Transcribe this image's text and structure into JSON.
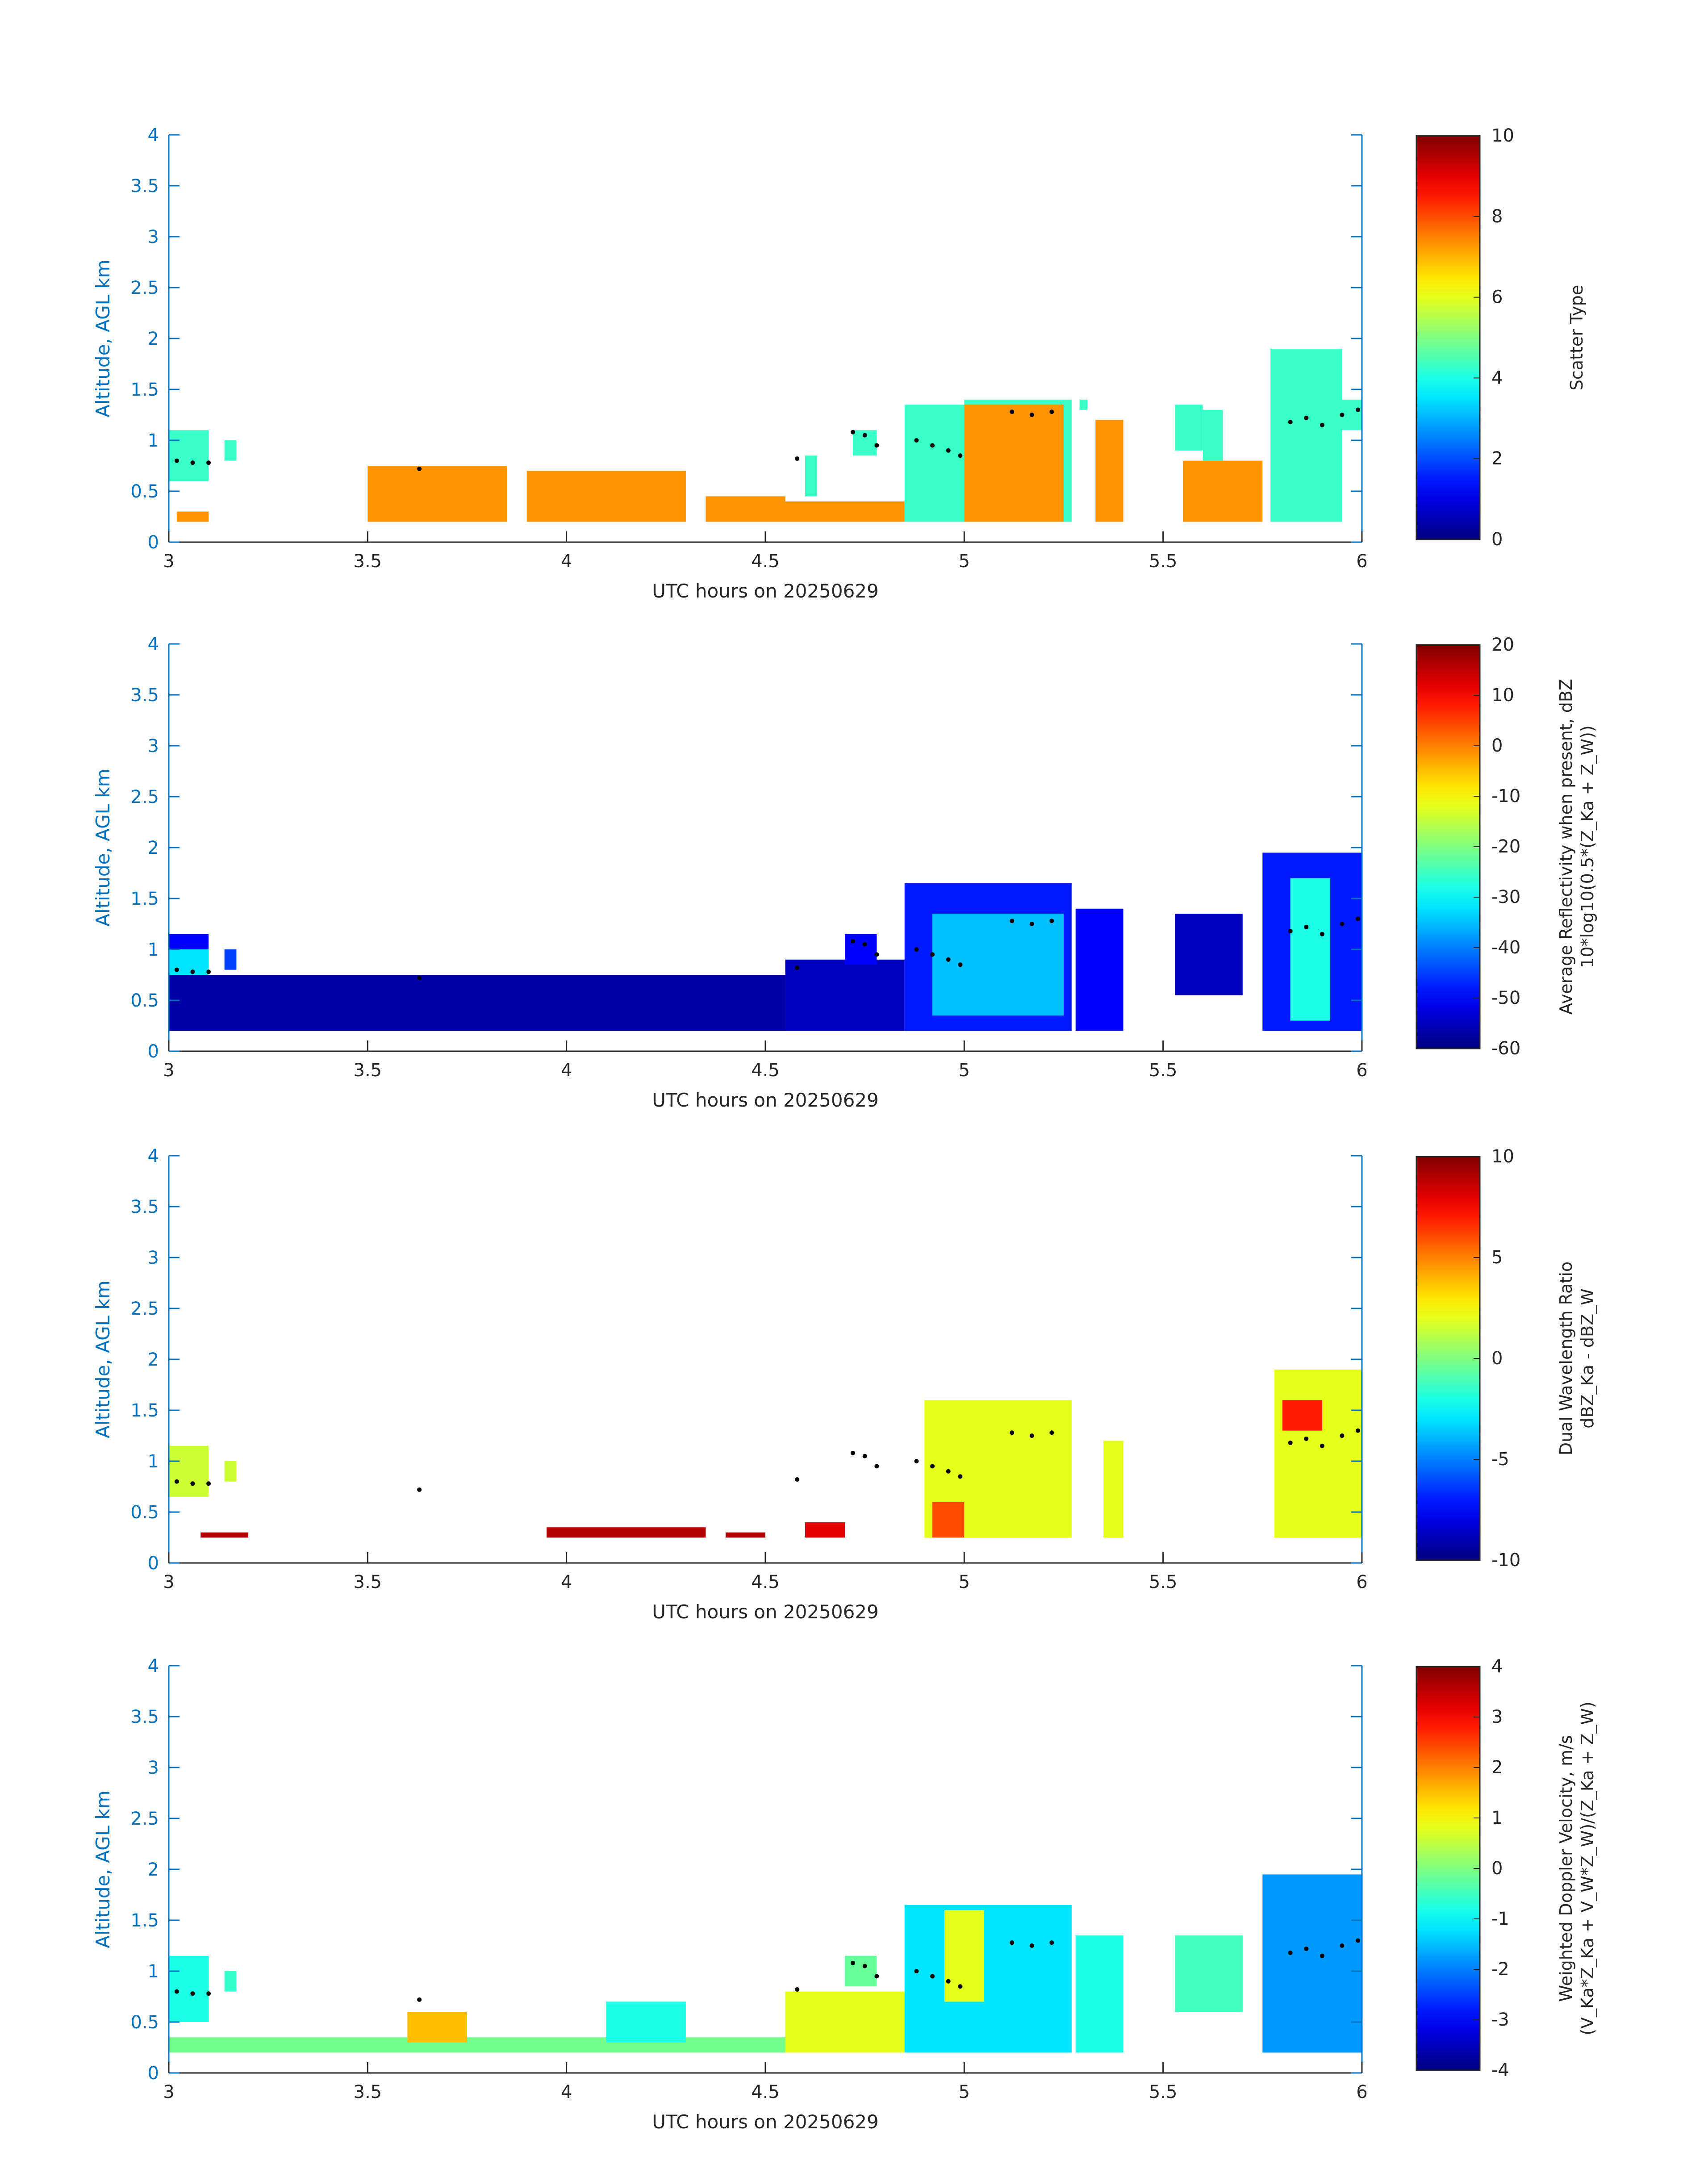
{
  "figure": {
    "x_axis_label": "UTC hours on 20250629",
    "y_axis_label": "Altitude, AGL km",
    "axis_color": "#0072BD",
    "x_ticks": [
      "3",
      "3.5",
      "4",
      "4.5",
      "5",
      "5.5",
      "6"
    ],
    "y_ticks": [
      "0",
      "0.5",
      "1",
      "1.5",
      "2",
      "2.5",
      "3",
      "3.5",
      "4"
    ]
  },
  "chart_data": [
    {
      "type": "heatmap",
      "xlabel": "UTC hours on 20250629",
      "ylabel": "Altitude, AGL km",
      "xlim": [
        3,
        6
      ],
      "ylim": [
        0,
        4
      ],
      "colormap": "jet",
      "colorbar": {
        "label_lines": [
          "Scatter Type"
        ],
        "range": [
          0,
          10
        ],
        "ticks": [
          "0",
          "2",
          "4",
          "6",
          "8",
          "10"
        ]
      },
      "regions": [
        {
          "x": [
            3.0,
            3.1
          ],
          "y": [
            0.6,
            1.1
          ],
          "value": 4.3
        },
        {
          "x": [
            3.14,
            3.17
          ],
          "y": [
            0.8,
            1.0
          ],
          "value": 4.3
        },
        {
          "x": [
            4.6,
            4.63
          ],
          "y": [
            0.45,
            0.85
          ],
          "value": 4.3
        },
        {
          "x": [
            4.72,
            4.78
          ],
          "y": [
            0.85,
            1.1
          ],
          "value": 4.3
        },
        {
          "x": [
            4.85,
            5.0
          ],
          "y": [
            0.2,
            1.35
          ],
          "value": 4.3
        },
        {
          "x": [
            5.0,
            5.27
          ],
          "y": [
            0.2,
            1.4
          ],
          "value": 4.3
        },
        {
          "x": [
            5.29,
            5.31
          ],
          "y": [
            1.3,
            1.4
          ],
          "value": 4.3
        },
        {
          "x": [
            5.53,
            5.6
          ],
          "y": [
            0.9,
            1.35
          ],
          "value": 4.3
        },
        {
          "x": [
            5.6,
            5.65
          ],
          "y": [
            0.8,
            1.3
          ],
          "value": 4.3
        },
        {
          "x": [
            5.77,
            5.95
          ],
          "y": [
            0.2,
            1.9
          ],
          "value": 4.3
        },
        {
          "x": [
            5.95,
            6.0
          ],
          "y": [
            1.1,
            1.4
          ],
          "value": 4.3
        },
        {
          "x": [
            3.02,
            3.1
          ],
          "y": [
            0.2,
            0.3
          ],
          "value": 7.3
        },
        {
          "x": [
            3.5,
            3.85
          ],
          "y": [
            0.2,
            0.75
          ],
          "value": 7.3
        },
        {
          "x": [
            3.9,
            4.3
          ],
          "y": [
            0.2,
            0.7
          ],
          "value": 7.3
        },
        {
          "x": [
            4.35,
            4.55
          ],
          "y": [
            0.2,
            0.45
          ],
          "value": 7.3
        },
        {
          "x": [
            4.55,
            4.85
          ],
          "y": [
            0.2,
            0.4
          ],
          "value": 7.3
        },
        {
          "x": [
            5.0,
            5.25
          ],
          "y": [
            0.2,
            1.35
          ],
          "value": 7.3
        },
        {
          "x": [
            5.33,
            5.4
          ],
          "y": [
            0.2,
            1.2
          ],
          "value": 7.3
        },
        {
          "x": [
            5.55,
            5.75
          ],
          "y": [
            0.2,
            0.8
          ],
          "value": 7.3
        }
      ]
    },
    {
      "type": "heatmap",
      "xlabel": "UTC hours on 20250629",
      "ylabel": "Altitude, AGL km",
      "xlim": [
        3,
        6
      ],
      "ylim": [
        0,
        4
      ],
      "colormap": "jet",
      "colorbar": {
        "label_lines": [
          "Average Reflectivity when present, dBZ",
          "10*log10(0.5*(Z_Ka + Z_W))"
        ],
        "range": [
          -60,
          20
        ],
        "ticks": [
          "-60",
          "-50",
          "-40",
          "-30",
          "-20",
          "-10",
          "0",
          "10",
          "20"
        ]
      },
      "regions": [
        {
          "x": [
            3.0,
            3.1
          ],
          "y": [
            0.55,
            1.15
          ],
          "value": -50
        },
        {
          "x": [
            3.0,
            3.1
          ],
          "y": [
            0.7,
            1.0
          ],
          "value": -32
        },
        {
          "x": [
            3.14,
            3.17
          ],
          "y": [
            0.8,
            1.0
          ],
          "value": -45
        },
        {
          "x": [
            3.0,
            4.55
          ],
          "y": [
            0.2,
            0.75
          ],
          "value": -57
        },
        {
          "x": [
            4.55,
            4.85
          ],
          "y": [
            0.2,
            0.9
          ],
          "value": -55
        },
        {
          "x": [
            4.7,
            4.78
          ],
          "y": [
            0.85,
            1.15
          ],
          "value": -50
        },
        {
          "x": [
            4.85,
            5.27
          ],
          "y": [
            0.2,
            1.65
          ],
          "value": -48
        },
        {
          "x": [
            4.92,
            5.25
          ],
          "y": [
            0.35,
            1.35
          ],
          "value": -35
        },
        {
          "x": [
            5.28,
            5.4
          ],
          "y": [
            0.2,
            1.4
          ],
          "value": -50
        },
        {
          "x": [
            5.53,
            5.7
          ],
          "y": [
            0.55,
            1.35
          ],
          "value": -55
        },
        {
          "x": [
            5.75,
            6.0
          ],
          "y": [
            0.2,
            1.95
          ],
          "value": -48
        },
        {
          "x": [
            5.82,
            5.92
          ],
          "y": [
            0.3,
            1.7
          ],
          "value": -28
        }
      ]
    },
    {
      "type": "heatmap",
      "xlabel": "UTC hours on 20250629",
      "ylabel": "Altitude, AGL km",
      "xlim": [
        3,
        6
      ],
      "ylim": [
        0,
        4
      ],
      "colormap": "jet",
      "colorbar": {
        "label_lines": [
          "Dual Wavelength Ratio",
          "dBZ_Ka - dBZ_W"
        ],
        "range": [
          -10,
          10
        ],
        "ticks": [
          "-10",
          "-5",
          "0",
          "5",
          "10"
        ]
      },
      "regions": [
        {
          "x": [
            3.0,
            3.1
          ],
          "y": [
            0.65,
            1.15
          ],
          "value": 1.5
        },
        {
          "x": [
            3.14,
            3.17
          ],
          "y": [
            0.8,
            1.0
          ],
          "value": 1.5
        },
        {
          "x": [
            3.08,
            3.2
          ],
          "y": [
            0.25,
            0.3
          ],
          "value": 9
        },
        {
          "x": [
            3.95,
            4.35
          ],
          "y": [
            0.25,
            0.35
          ],
          "value": 9
        },
        {
          "x": [
            4.4,
            4.5
          ],
          "y": [
            0.25,
            0.3
          ],
          "value": 9
        },
        {
          "x": [
            4.6,
            4.7
          ],
          "y": [
            0.25,
            0.4
          ],
          "value": 8
        },
        {
          "x": [
            4.9,
            5.27
          ],
          "y": [
            0.25,
            1.6
          ],
          "value": 2
        },
        {
          "x": [
            4.92,
            5.0
          ],
          "y": [
            0.25,
            0.6
          ],
          "value": 6
        },
        {
          "x": [
            5.35,
            5.4
          ],
          "y": [
            0.25,
            1.2
          ],
          "value": 2
        },
        {
          "x": [
            5.78,
            6.0
          ],
          "y": [
            0.25,
            1.9
          ],
          "value": 2
        },
        {
          "x": [
            5.8,
            5.9
          ],
          "y": [
            1.3,
            1.6
          ],
          "value": 7
        }
      ]
    },
    {
      "type": "heatmap",
      "xlabel": "UTC hours on 20250629",
      "ylabel": "Altitude, AGL km",
      "xlim": [
        3,
        6
      ],
      "ylim": [
        0,
        4
      ],
      "colormap": "jet",
      "colorbar": {
        "label_lines": [
          "Weighted Doppler Velocity, m/s",
          "(V_Ka*Z_Ka + V_W*Z_W)/(Z_Ka + Z_W)"
        ],
        "range": [
          -4,
          4
        ],
        "ticks": [
          "-4",
          "-3",
          "-2",
          "-1",
          "0",
          "1",
          "2",
          "3",
          "4"
        ]
      },
      "regions": [
        {
          "x": [
            3.0,
            3.1
          ],
          "y": [
            0.5,
            1.15
          ],
          "value": -0.8
        },
        {
          "x": [
            3.14,
            3.17
          ],
          "y": [
            0.8,
            1.0
          ],
          "value": -0.6
        },
        {
          "x": [
            3.0,
            4.55
          ],
          "y": [
            0.2,
            0.35
          ],
          "value": -0.1
        },
        {
          "x": [
            3.6,
            3.75
          ],
          "y": [
            0.3,
            0.6
          ],
          "value": 1.5
        },
        {
          "x": [
            4.1,
            4.3
          ],
          "y": [
            0.3,
            0.7
          ],
          "value": -0.8
        },
        {
          "x": [
            4.55,
            4.85
          ],
          "y": [
            0.2,
            0.8
          ],
          "value": 0.8
        },
        {
          "x": [
            4.7,
            4.78
          ],
          "y": [
            0.85,
            1.15
          ],
          "value": -0.2
        },
        {
          "x": [
            4.85,
            5.27
          ],
          "y": [
            0.2,
            1.65
          ],
          "value": -1.2
        },
        {
          "x": [
            4.95,
            5.05
          ],
          "y": [
            0.7,
            1.6
          ],
          "value": 0.8
        },
        {
          "x": [
            5.28,
            5.4
          ],
          "y": [
            0.2,
            1.35
          ],
          "value": -0.8
        },
        {
          "x": [
            5.53,
            5.7
          ],
          "y": [
            0.6,
            1.35
          ],
          "value": -0.5
        },
        {
          "x": [
            5.75,
            6.0
          ],
          "y": [
            0.2,
            1.95
          ],
          "value": -1.8
        }
      ],
      "melting_layer_dots": [
        {
          "x": 3.02,
          "y": 0.8
        },
        {
          "x": 3.06,
          "y": 0.78
        },
        {
          "x": 3.1,
          "y": 0.78
        },
        {
          "x": 3.63,
          "y": 0.72
        },
        {
          "x": 4.58,
          "y": 0.82
        },
        {
          "x": 4.72,
          "y": 1.08
        },
        {
          "x": 4.75,
          "y": 1.05
        },
        {
          "x": 4.78,
          "y": 0.95
        },
        {
          "x": 4.88,
          "y": 1.0
        },
        {
          "x": 4.92,
          "y": 0.95
        },
        {
          "x": 4.96,
          "y": 0.9
        },
        {
          "x": 4.99,
          "y": 0.85
        },
        {
          "x": 5.12,
          "y": 1.28
        },
        {
          "x": 5.17,
          "y": 1.25
        },
        {
          "x": 5.22,
          "y": 1.28
        },
        {
          "x": 5.82,
          "y": 1.18
        },
        {
          "x": 5.86,
          "y": 1.22
        },
        {
          "x": 5.9,
          "y": 1.15
        },
        {
          "x": 5.95,
          "y": 1.25
        },
        {
          "x": 5.99,
          "y": 1.3
        }
      ]
    }
  ]
}
